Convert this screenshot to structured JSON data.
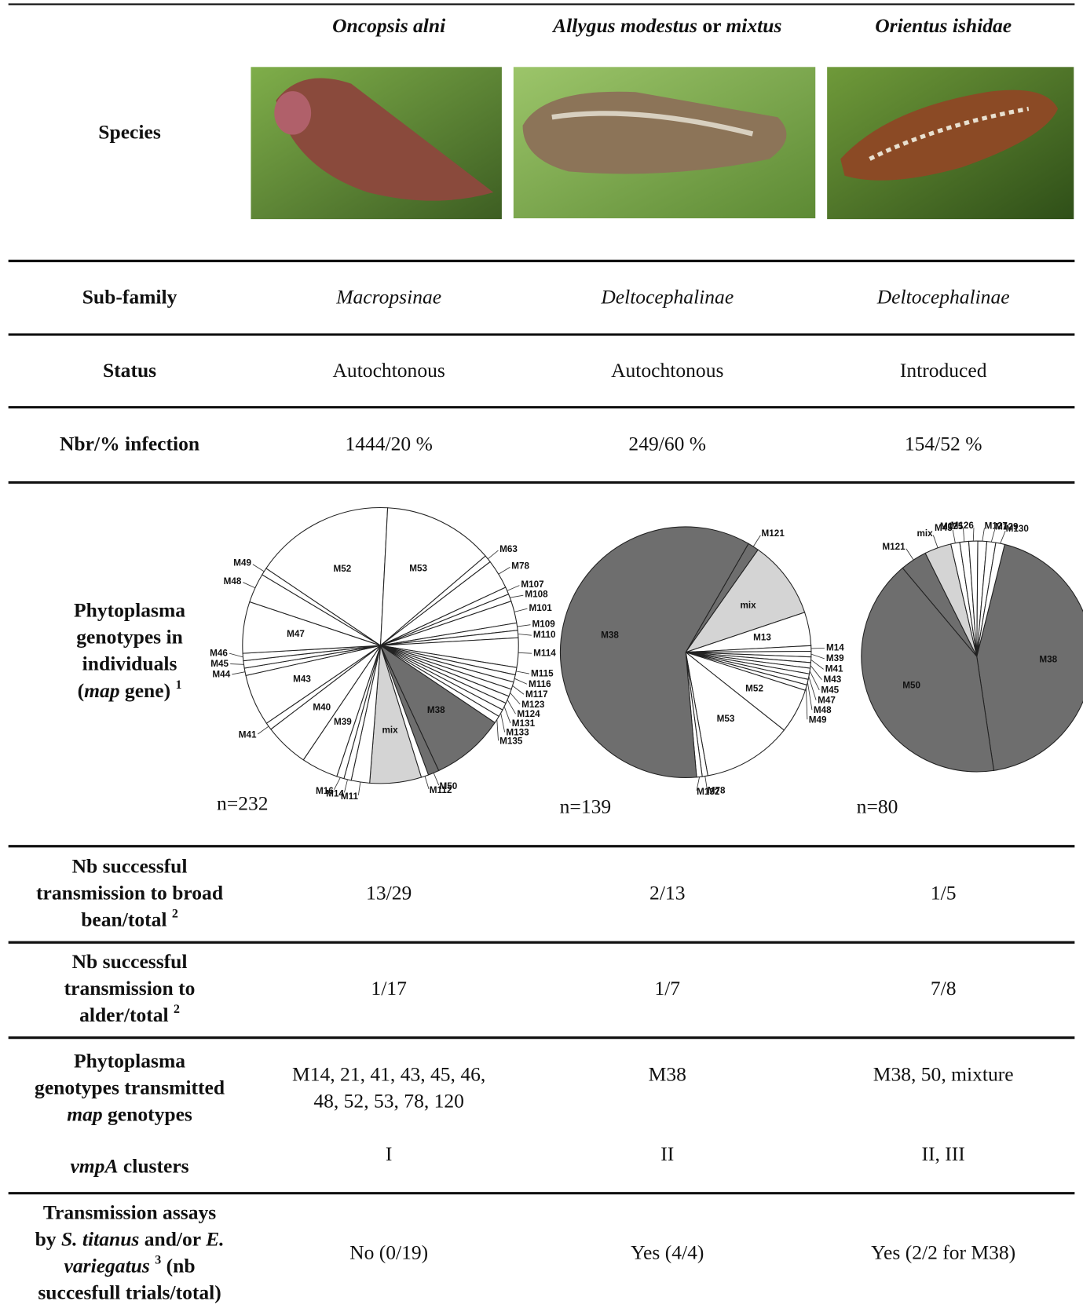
{
  "header": {
    "columns": [
      [
        {
          "text": "Oncopsis alni",
          "italic": true
        }
      ],
      [
        {
          "text": "Allygus modestus",
          "italic": true
        },
        {
          "text": " or "
        },
        {
          "text": "mixtus",
          "italic": true
        }
      ],
      [
        {
          "text": "Orientus ishidae",
          "italic": true
        }
      ]
    ]
  },
  "rows": [
    {
      "label": [
        [
          {
            "text": "Species"
          }
        ]
      ]
    },
    {
      "label": [
        [
          {
            "text": "Sub-family"
          }
        ]
      ],
      "cells": [
        [
          [
            {
              "text": "Macropsinae",
              "italic": true
            }
          ]
        ],
        [
          [
            {
              "text": "Deltocephalinae",
              "italic": true
            }
          ]
        ],
        [
          [
            {
              "text": "Deltocephalinae",
              "italic": true
            }
          ]
        ]
      ]
    },
    {
      "label": [
        [
          {
            "text": "Status"
          }
        ]
      ],
      "cells": [
        [
          [
            {
              "text": "Autochtonous"
            }
          ]
        ],
        [
          [
            {
              "text": "Autochtonous"
            }
          ]
        ],
        [
          [
            {
              "text": "Introduced"
            }
          ]
        ]
      ]
    },
    {
      "label": [
        [
          {
            "text": "Nbr/% infection"
          }
        ]
      ],
      "cells": [
        [
          [
            {
              "text": "1444/20 %"
            }
          ]
        ],
        [
          [
            {
              "text": "249/60 %"
            }
          ]
        ],
        [
          [
            {
              "text": "154/52 %"
            }
          ]
        ]
      ]
    },
    {
      "label": [
        [
          {
            "text": "Phytoplasma"
          }
        ],
        [
          {
            "text": "genotypes in"
          }
        ],
        [
          {
            "text": "individuals"
          }
        ],
        [
          {
            "text": "("
          },
          {
            "text": "map",
            "italic": true
          },
          {
            "text": " gene) "
          },
          {
            "text": "1",
            "sup": true
          }
        ]
      ]
    },
    {
      "label": [
        [
          {
            "text": "Nb successful"
          }
        ],
        [
          {
            "text": "transmission to broad"
          }
        ],
        [
          {
            "text": "bean/total "
          },
          {
            "text": "2",
            "sup": true
          }
        ]
      ],
      "cells": [
        [
          [
            {
              "text": "13/29"
            }
          ]
        ],
        [
          [
            {
              "text": "2/13"
            }
          ]
        ],
        [
          [
            {
              "text": "1/5"
            }
          ]
        ]
      ]
    },
    {
      "label": [
        [
          {
            "text": "Nb successful"
          }
        ],
        [
          {
            "text": "transmission to"
          }
        ],
        [
          {
            "text": "alder/total "
          },
          {
            "text": "2",
            "sup": true
          }
        ]
      ],
      "cells": [
        [
          [
            {
              "text": "1/17"
            }
          ]
        ],
        [
          [
            {
              "text": "1/7"
            }
          ]
        ],
        [
          [
            {
              "text": "7/8"
            }
          ]
        ]
      ]
    },
    {
      "label": [
        [
          {
            "text": "Phytoplasma"
          }
        ],
        [
          {
            "text": "genotypes transmitted"
          }
        ],
        [
          {
            "text": "map",
            "italic": true
          },
          {
            "text": " genotypes"
          }
        ]
      ],
      "cells": [
        [
          [
            {
              "text": "M14, 21, 41, 43, 45, 46,"
            }
          ],
          [
            {
              "text": "48, 52, 53, 78, 120"
            }
          ]
        ],
        [
          [
            {
              "text": "M38"
            }
          ]
        ],
        [
          [
            {
              "text": "M38, 50, mixture"
            }
          ]
        ]
      ]
    },
    {
      "label": [
        [
          {
            "text": "vmpA",
            "italic": true
          },
          {
            "text": " clusters"
          }
        ]
      ],
      "cells": [
        [
          [
            {
              "text": "I"
            }
          ]
        ],
        [
          [
            {
              "text": "II"
            }
          ]
        ],
        [
          [
            {
              "text": "II, III"
            }
          ]
        ]
      ]
    },
    {
      "label": [
        [
          {
            "text": "Transmission assays"
          }
        ],
        [
          {
            "text": "by "
          },
          {
            "text": "S. titanus",
            "italic": true
          },
          {
            "text": " and/or "
          },
          {
            "text": "E.",
            "italic": true
          }
        ],
        [
          {
            "text": "variegatus",
            "italic": true
          },
          {
            "text": " "
          },
          {
            "text": "3",
            "sup": true
          },
          {
            "text": " (nb"
          }
        ],
        [
          {
            "text": "succesfull trials/total)"
          }
        ]
      ],
      "cells": [
        [
          [
            {
              "text": "No (0/19)"
            }
          ]
        ],
        [
          [
            {
              "text": "Yes (4/4)"
            }
          ]
        ],
        [
          [
            {
              "text": "Yes (2/2 for M38)"
            }
          ]
        ]
      ]
    }
  ],
  "charts": [
    {
      "type": "pie",
      "n_label": "n=232",
      "start_angle": -56,
      "labels": [
        "M52",
        "M53",
        "M63",
        "M78",
        "M107",
        "M108",
        "M101",
        "M109",
        "M110",
        "M114",
        "M115",
        "M116",
        "M117",
        "M123",
        "M124",
        "M131",
        "M133",
        "M135",
        "M38",
        "M50",
        "M112",
        "mix",
        "M11",
        "M14",
        "M16",
        "M39",
        "M40",
        "M41",
        "M43",
        "M44",
        "M45",
        "M46",
        "M47",
        "M48",
        "M49"
      ],
      "values": [
        38,
        30,
        2,
        8,
        2,
        2,
        6,
        2,
        2,
        8,
        2,
        2,
        2,
        2,
        2,
        2,
        2,
        2,
        20,
        3,
        2,
        14,
        5,
        2,
        2,
        10,
        12,
        2,
        14,
        2,
        2,
        2,
        14,
        8,
        2
      ],
      "colors": [
        "#ffffff",
        "#ffffff",
        "#ffffff",
        "#ffffff",
        "#ffffff",
        "#ffffff",
        "#ffffff",
        "#ffffff",
        "#ffffff",
        "#ffffff",
        "#ffffff",
        "#ffffff",
        "#ffffff",
        "#ffffff",
        "#ffffff",
        "#ffffff",
        "#ffffff",
        "#ffffff",
        "#6e6e6e",
        "#6e6e6e",
        "#ffffff",
        "#d4d4d4",
        "#ffffff",
        "#ffffff",
        "#ffffff",
        "#ffffff",
        "#ffffff",
        "#ffffff",
        "#ffffff",
        "#ffffff",
        "#ffffff",
        "#ffffff",
        "#ffffff",
        "#ffffff",
        "#ffffff"
      ]
    },
    {
      "type": "pie",
      "n_label": "n=139",
      "start_angle": 30,
      "labels": [
        "M121",
        "mix",
        "M13",
        "M14",
        "M39",
        "M41",
        "M43",
        "M45",
        "M47",
        "M48",
        "M49",
        "M52",
        "M53",
        "M78",
        "M132",
        "M38"
      ],
      "values": [
        2,
        14,
        6,
        1,
        1,
        1,
        1,
        1,
        1,
        1,
        1,
        8,
        16,
        1,
        1,
        83
      ],
      "colors": [
        "#6e6e6e",
        "#d4d4d4",
        "#ffffff",
        "#ffffff",
        "#ffffff",
        "#ffffff",
        "#ffffff",
        "#ffffff",
        "#ffffff",
        "#ffffff",
        "#ffffff",
        "#ffffff",
        "#ffffff",
        "#ffffff",
        "#ffffff",
        "#6e6e6e"
      ]
    },
    {
      "type": "pie",
      "n_label": "n=80",
      "start_angle": 14,
      "labels": [
        "M38",
        "M50",
        "M121",
        "mix",
        "M45",
        "M125",
        "M126",
        "M127",
        "M129",
        "M130"
      ],
      "values": [
        35,
        33,
        3,
        3,
        1,
        1,
        1,
        1,
        1,
        1
      ],
      "colors": [
        "#6e6e6e",
        "#6e6e6e",
        "#6e6e6e",
        "#d4d4d4",
        "#ffffff",
        "#ffffff",
        "#ffffff",
        "#ffffff",
        "#ffffff",
        "#ffffff"
      ]
    }
  ]
}
